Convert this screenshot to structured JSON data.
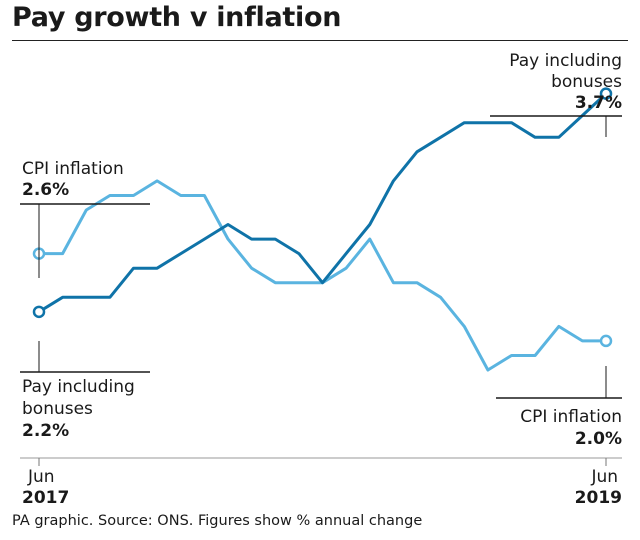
{
  "chart_data": {
    "type": "line",
    "title": "Pay growth v inflation",
    "footer": "PA graphic. Source: ONS. Figures show % annual change",
    "ylim": [
      1.25,
      4.0
    ],
    "x_start": {
      "month": "Jun",
      "year": "2017"
    },
    "x_end": {
      "month": "Jun",
      "year": "2019"
    },
    "series": [
      {
        "name": "CPI inflation",
        "color": "#5ab4e0",
        "values": [
          2.6,
          2.6,
          2.9,
          3.0,
          3.0,
          3.1,
          3.0,
          3.0,
          2.7,
          2.5,
          2.4,
          2.4,
          2.4,
          2.5,
          2.7,
          2.4,
          2.4,
          2.3,
          2.1,
          1.8,
          1.9,
          1.9,
          2.1,
          2.0,
          2.0
        ]
      },
      {
        "name": "Pay including bonuses",
        "color": "#0f73a8",
        "values": [
          2.2,
          2.3,
          2.3,
          2.3,
          2.5,
          2.5,
          2.6,
          2.7,
          2.8,
          2.7,
          2.7,
          2.6,
          2.4,
          2.6,
          2.8,
          3.1,
          3.3,
          3.4,
          3.5,
          3.5,
          3.5,
          3.4,
          3.4,
          3.55,
          3.7
        ]
      }
    ],
    "annotations": {
      "cpi_start": {
        "label": "CPI inflation",
        "value": "2.6%"
      },
      "pay_start": {
        "label_line1": "Pay including",
        "label_line2": "bonuses",
        "value": "2.2%"
      },
      "pay_end": {
        "label_line1": "Pay including",
        "label_line2": "bonuses",
        "value": "3.7%"
      },
      "cpi_end": {
        "label": "CPI inflation",
        "value": "2.0%"
      }
    }
  }
}
